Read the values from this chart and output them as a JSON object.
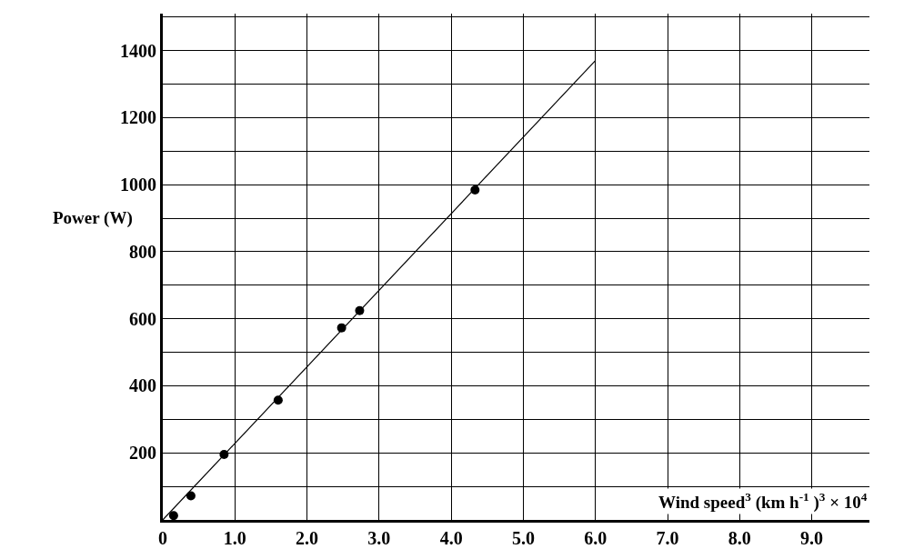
{
  "chart_data": {
    "type": "scatter",
    "xlabel": "Wind speed$^{3}$ (km h$^{-1}$ )$^{3}$ × 10$^{4}$",
    "ylabel": "Power (W)",
    "xlim": [
      0,
      9.8
    ],
    "ylim": [
      0,
      1510
    ],
    "xticks": [
      0,
      {
        "value": 1,
        "label": "1.0"
      },
      {
        "value": 2,
        "label": "2.0"
      },
      {
        "value": 3,
        "label": "3.0"
      },
      {
        "value": 4,
        "label": "4.0"
      },
      {
        "value": 5,
        "label": "5.0"
      },
      {
        "value": 6,
        "label": "6.0"
      },
      {
        "value": 7,
        "label": "7.0"
      },
      {
        "value": 8,
        "label": "8.0"
      },
      {
        "value": 9,
        "label": "9.0"
      }
    ],
    "yticks": [
      {
        "value": 100,
        "label": null
      },
      200,
      {
        "value": 300,
        "label": null
      },
      400,
      {
        "value": 500,
        "label": null
      },
      600,
      {
        "value": 700,
        "label": null
      },
      800,
      {
        "value": 900,
        "label": null
      },
      1000,
      {
        "value": 1100,
        "label": null
      },
      1200,
      {
        "value": 1300,
        "label": null
      },
      1400,
      {
        "value": 1500,
        "label": null
      }
    ],
    "grid": true,
    "marker": "circle",
    "series": [
      {
        "color": "#000000",
        "x": [
          0.15,
          0.39,
          0.85,
          1.6,
          2.48,
          2.73,
          4.33
        ],
        "values": [
          13,
          72,
          195,
          357,
          573,
          624,
          984
        ]
      },
      {
        "type": "line",
        "color": "#000000",
        "marker": "none",
        "x": [
          0,
          6.0
        ],
        "values": [
          0,
          1370
        ]
      }
    ]
  }
}
